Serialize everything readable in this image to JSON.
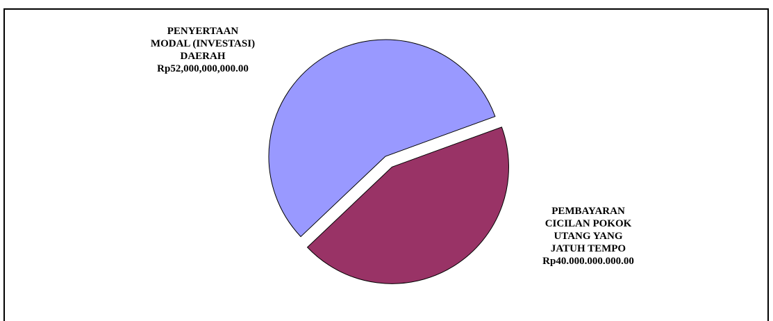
{
  "chart_data": {
    "type": "pie",
    "title": "",
    "slices": [
      {
        "label_lines": [
          "PENYERTAAN",
          "MODAL (INVESTASI)",
          "DAERAH",
          "Rp52,000,000,000.00"
        ],
        "value": 52000000000,
        "color": "#9999ff",
        "exploded": false
      },
      {
        "label_lines": [
          "PEMBAYARAN",
          "CICILAN POKOK",
          "UTANG YANG",
          "JATUH TEMPO",
          "Rp40.000.000.000.00"
        ],
        "value": 40000000000,
        "color": "#993366",
        "exploded": true
      }
    ],
    "legend": "none"
  }
}
